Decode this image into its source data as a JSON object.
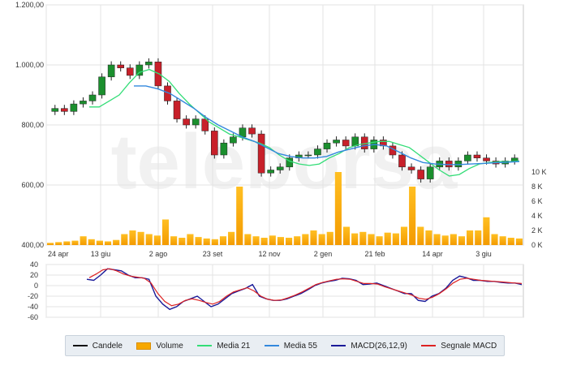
{
  "chart_data": [
    {
      "type": "candlestick",
      "watermark": "teleborsa",
      "ylim": [
        400,
        1200
      ],
      "yticks": [
        400,
        600,
        800,
        1000,
        1200
      ],
      "ytick_labels": [
        "400,00",
        "600,00",
        "800,00",
        "1.000,00",
        "1.200,00"
      ],
      "xtick_labels": [
        "24 apr",
        "13 giu",
        "2 ago",
        "23 set",
        "12 nov",
        "2 gen",
        "21 feb",
        "14 apr",
        "3 giu"
      ],
      "grid": true,
      "series": [
        {
          "name": "Candele",
          "approx_close": [
            855,
            845,
            870,
            880,
            900,
            960,
            1000,
            990,
            965,
            1000,
            1010,
            930,
            880,
            820,
            800,
            820,
            780,
            700,
            740,
            760,
            790,
            770,
            640,
            650,
            660,
            690,
            700,
            700,
            720,
            740,
            750,
            730,
            760,
            720,
            750,
            730,
            700,
            660,
            650,
            620,
            660,
            680,
            660,
            680,
            700,
            690,
            680,
            670,
            680,
            690
          ]
        },
        {
          "name": "Media 21",
          "approx_values": [
            860,
            860,
            880,
            900,
            940,
            975,
            985,
            970,
            945,
            905,
            870,
            840,
            810,
            790,
            770,
            760,
            750,
            740,
            725,
            700,
            680,
            670,
            665,
            670,
            690,
            705,
            725,
            735,
            740,
            745,
            745,
            735,
            725,
            700,
            675,
            650,
            630,
            635,
            655,
            670,
            675,
            678,
            678,
            680
          ]
        },
        {
          "name": "Media 55",
          "approx_values": [
            930,
            930,
            920,
            905,
            880,
            855,
            825,
            800,
            780,
            760,
            745,
            725,
            705,
            695,
            690,
            690,
            695,
            710,
            720,
            730,
            735,
            730,
            710,
            690,
            675,
            670,
            668,
            668,
            670,
            672,
            674,
            676,
            678
          ]
        }
      ]
    },
    {
      "type": "bar",
      "series_name": "Volume",
      "ylim": [
        0,
        12000
      ],
      "yticks": [
        0,
        2000,
        4000,
        6000,
        8000,
        10000
      ],
      "ytick_labels": [
        "0 K",
        "2 K",
        "4 K",
        "6 K",
        "8 K",
        "10 K"
      ],
      "approx_values": [
        300,
        400,
        500,
        600,
        1200,
        800,
        600,
        500,
        700,
        1500,
        2000,
        1800,
        1500,
        1300,
        3500,
        1200,
        1000,
        1500,
        1100,
        900,
        800,
        1200,
        1800,
        8000,
        1500,
        1200,
        1000,
        1300,
        1100,
        1000,
        1200,
        1500,
        2000,
        1500,
        1800,
        10000,
        2500,
        1600,
        1800,
        1500,
        1200,
        1700,
        1600,
        2500,
        8000,
        2500,
        2000,
        1500,
        1300,
        1500,
        1200,
        2000,
        2000,
        3800,
        1500,
        1200,
        1000,
        900
      ]
    },
    {
      "type": "line",
      "ylim": [
        -60,
        40
      ],
      "yticks": [
        -60,
        -40,
        -20,
        0,
        20,
        40
      ],
      "ytick_labels": [
        "-60",
        "-40",
        "-20",
        "0",
        "20",
        "40"
      ],
      "series": [
        {
          "name": "MACD(26,12,9)",
          "approx_values": [
            12,
            10,
            20,
            32,
            30,
            28,
            20,
            15,
            15,
            12,
            -20,
            -35,
            -45,
            -40,
            -30,
            -25,
            -20,
            -30,
            -40,
            -35,
            -25,
            -15,
            -10,
            -5,
            2,
            -20,
            -25,
            -28,
            -28,
            -25,
            -20,
            -15,
            -8,
            0,
            5,
            8,
            10,
            14,
            13,
            10,
            2,
            3,
            5,
            0,
            -5,
            -10,
            -15,
            -15,
            -28,
            -30,
            -20,
            -15,
            -5,
            10,
            18,
            15,
            10,
            10,
            8,
            8,
            6,
            5,
            5,
            2
          ]
        },
        {
          "name": "Segnale MACD",
          "approx_values": [
            15,
            22,
            30,
            32,
            28,
            22,
            18,
            16,
            14,
            5,
            -15,
            -30,
            -38,
            -35,
            -28,
            -25,
            -28,
            -32,
            -35,
            -30,
            -20,
            -12,
            -8,
            -4,
            -10,
            -20,
            -26,
            -28,
            -27,
            -23,
            -18,
            -12,
            -5,
            2,
            6,
            9,
            12,
            13,
            12,
            8,
            4,
            4,
            3,
            -2,
            -6,
            -10,
            -14,
            -18,
            -24,
            -26,
            -22,
            -15,
            -6,
            5,
            12,
            14,
            12,
            10,
            9,
            8,
            7,
            6,
            5,
            4
          ]
        }
      ]
    }
  ],
  "legend": [
    {
      "label": "Candele",
      "color": "#111111",
      "kind": "line"
    },
    {
      "label": "Volume",
      "color": "#f7a800",
      "kind": "bar"
    },
    {
      "label": "Media 21",
      "color": "#33dd77",
      "kind": "line"
    },
    {
      "label": "Media 55",
      "color": "#3388dd",
      "kind": "line"
    },
    {
      "label": "MACD(26,12,9)",
      "color": "#1a1a99",
      "kind": "line"
    },
    {
      "label": "Segnale MACD",
      "color": "#dd2222",
      "kind": "line"
    }
  ],
  "colors": {
    "up_candle": "#1b8f2e",
    "down_candle": "#c8202a",
    "volume": "#f7a800",
    "media21": "#33dd77",
    "media55": "#3388dd",
    "macd": "#1a1a99",
    "signal": "#dd2222",
    "grid": "#e3e3e3"
  }
}
